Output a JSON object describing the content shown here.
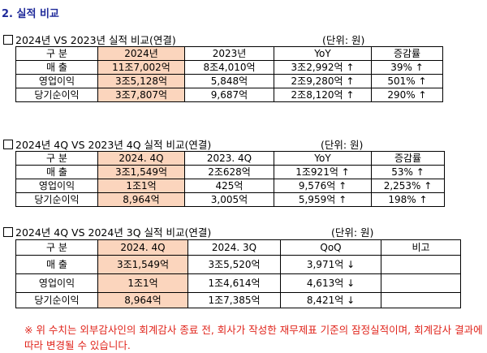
{
  "heading": "2. 실적 비교",
  "sections": [
    {
      "title": "2024년 VS 2023년 실적 비교(연결)",
      "unit": "(단위: 원)",
      "headers": [
        "구 분",
        "2024년",
        "2023년",
        "YoY",
        "증감률"
      ],
      "rows": [
        {
          "label": "매 출",
          "cur": "11조7,002억",
          "prev": "8조4,010억",
          "diff": "3조2,992억 ↑",
          "rate": "39% ↑"
        },
        {
          "label": "영업이익",
          "cur": "3조5,128억",
          "prev": "5,848억",
          "diff": "2조9,280억 ↑",
          "rate": "501% ↑"
        },
        {
          "label": "당기순이익",
          "cur": "3조7,807억",
          "prev": "9,687억",
          "diff": "2조8,120억 ↑",
          "rate": "290% ↑"
        }
      ]
    },
    {
      "title": "2024년 4Q VS 2023년 4Q 실적 비교(연결)",
      "unit": "(단위: 원)",
      "headers": [
        "구 분",
        "2024. 4Q",
        "2023. 4Q",
        "YoY",
        "증감률"
      ],
      "rows": [
        {
          "label": "매 출",
          "cur": "3조1,549억",
          "prev": "2조628억",
          "diff": "1조921억 ↑",
          "rate": "53% ↑"
        },
        {
          "label": "영업이익",
          "cur": "1조1억",
          "prev": "425억",
          "diff": "9,576억 ↑",
          "rate": "2,253% ↑"
        },
        {
          "label": "당기순이익",
          "cur": "8,964억",
          "prev": "3,005억",
          "diff": "5,959억 ↑",
          "rate": "198% ↑"
        }
      ]
    },
    {
      "title": "2024년 4Q VS 2024년 3Q 실적 비교(연결)",
      "unit": "(단위: 원)",
      "headers": [
        "구 분",
        "2024. 4Q",
        "2024. 3Q",
        "QoQ",
        "비고"
      ],
      "rows": [
        {
          "label": "매 출",
          "cur": "3조1,549억",
          "prev": "3조5,520억",
          "diff": "3,971억 ↓",
          "rate": ""
        },
        {
          "label": "영업이익",
          "cur": "1조1억",
          "prev": "1조4,614억",
          "diff": "4,613억 ↓",
          "rate": ""
        },
        {
          "label": "당기순이익",
          "cur": "8,964억",
          "prev": "1조7,385억",
          "diff": "8,421억 ↓",
          "rate": ""
        }
      ]
    }
  ],
  "note": "※ 위 수치는 외부감사인의 회계감사 종료 전, 회사가 작성한 재무제표 기준의 잠정실적이며, 회계감사 결과에 따라 변경될 수 있습니다.",
  "colors": {
    "heading": "#1f2a9a",
    "highlight": "#fbd5bd",
    "note": "#e0241b"
  }
}
